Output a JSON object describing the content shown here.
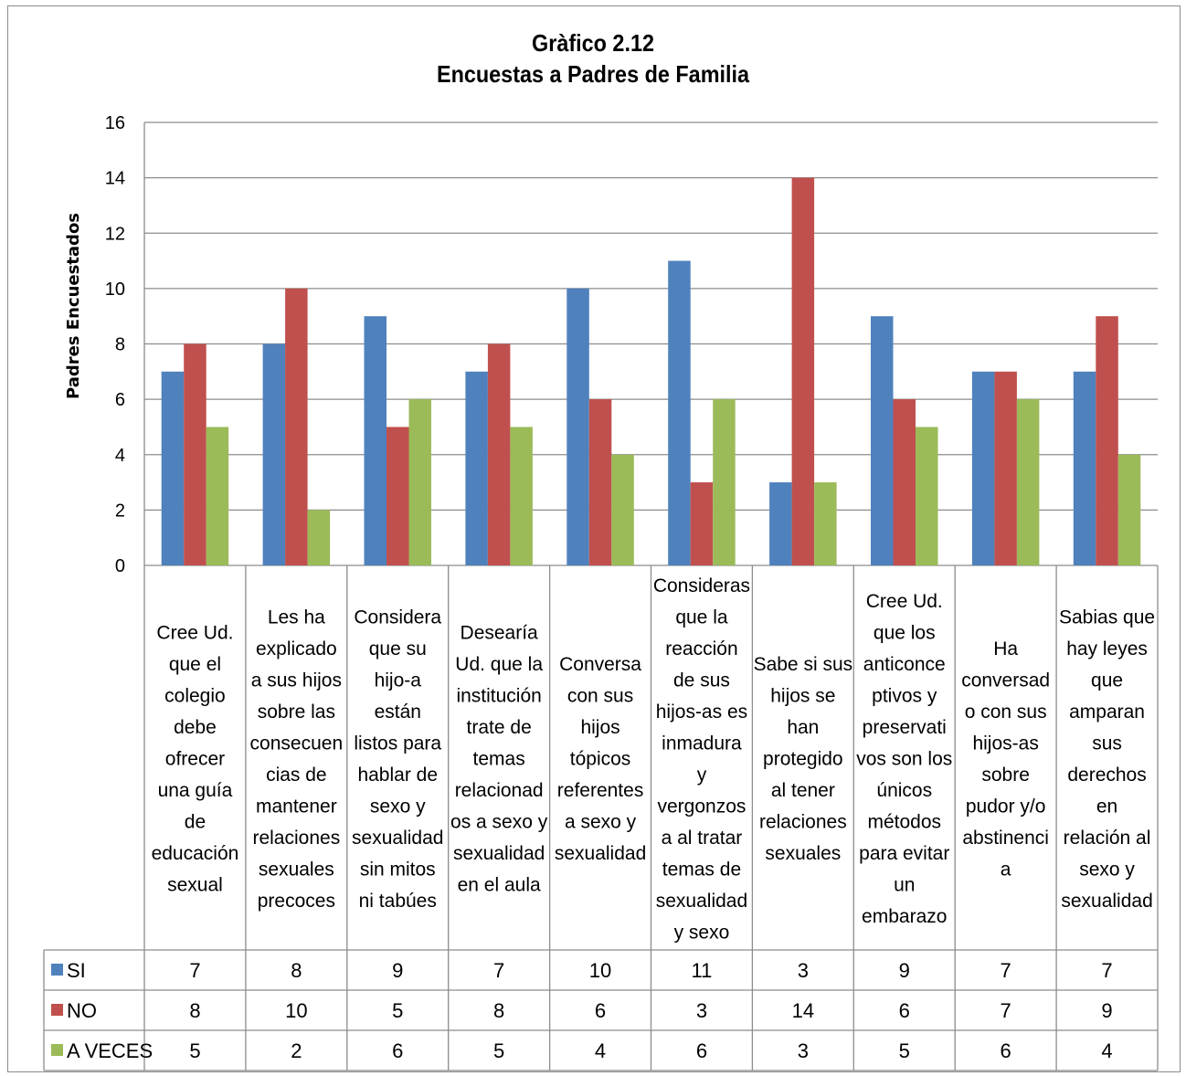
{
  "chart_data": {
    "type": "bar",
    "title": "Gràfico 2.12",
    "subtitle": "Encuestas a Padres de Familia",
    "xlabel": "",
    "ylabel": "Padres Encuestados",
    "ylim": [
      0,
      16
    ],
    "yticks": [
      "0",
      "2",
      "4",
      "6",
      "8",
      "10",
      "12",
      "14",
      "16"
    ],
    "grid": true,
    "legend_placement": "data-table",
    "categories": [
      [
        "Cree  Ud.",
        "que  el",
        "colegio",
        "debe",
        "ofrecer",
        "una guía",
        "de",
        "educación",
        "sexual"
      ],
      [
        "Les ha",
        "explicado",
        "a sus hijos",
        "sobre las",
        "consecuen",
        "cias de",
        "mantener",
        "relaciones",
        "sexuales",
        "precoces"
      ],
      [
        "Considera",
        "que su",
        "hijo-a",
        "están",
        "listos para",
        "hablar de",
        "sexo y",
        "sexualidad",
        "sin mitos",
        "ni tabúes"
      ],
      [
        "Desearía",
        "Ud. que la",
        "institución",
        "trate  de",
        "temas",
        "relacionad",
        "os a sexo y",
        "sexualidad",
        "en el aula"
      ],
      [
        "Conversa",
        "con sus",
        "hijos",
        "tópicos",
        "referentes",
        "a sexo y",
        "sexualidad"
      ],
      [
        "Consideras",
        "que la",
        "reacción",
        "de sus",
        "hijos-as  es",
        "inmadura",
        "y",
        "vergonzos",
        "a al tratar",
        "temas de",
        "sexualidad",
        "y sexo"
      ],
      [
        "Sabe si sus",
        "hijos se",
        "han",
        "protegido",
        "al tener",
        "relaciones",
        "sexuales"
      ],
      [
        "Cree Ud.",
        "que los",
        "anticonce",
        "ptivos y",
        "preservati",
        "vos son los",
        "únicos",
        "métodos",
        "para evitar",
        "un",
        "embarazo"
      ],
      [
        "Ha",
        "conversad",
        "o con sus",
        "hijos-as",
        "sobre",
        "pudor y/o",
        "abstinenci",
        "a"
      ],
      [
        "Sabias que",
        "hay leyes",
        "que",
        "amparan",
        "sus",
        "derechos",
        "en",
        "relación al",
        "sexo y",
        "sexualidad"
      ]
    ],
    "series": [
      {
        "name": "SI",
        "color": "#4f81bd",
        "values": [
          7,
          8,
          9,
          7,
          10,
          11,
          3,
          9,
          7,
          7
        ]
      },
      {
        "name": "NO",
        "color": "#c0504d",
        "values": [
          8,
          10,
          5,
          8,
          6,
          3,
          14,
          6,
          7,
          9
        ]
      },
      {
        "name": "A  VECES",
        "color": "#9bbb59",
        "values": [
          5,
          2,
          6,
          5,
          4,
          6,
          3,
          5,
          6,
          4
        ]
      }
    ]
  },
  "colors": {
    "grid": "#8c8c8c",
    "table_border": "#8c8c8c",
    "frame": "#8c8c8c"
  }
}
